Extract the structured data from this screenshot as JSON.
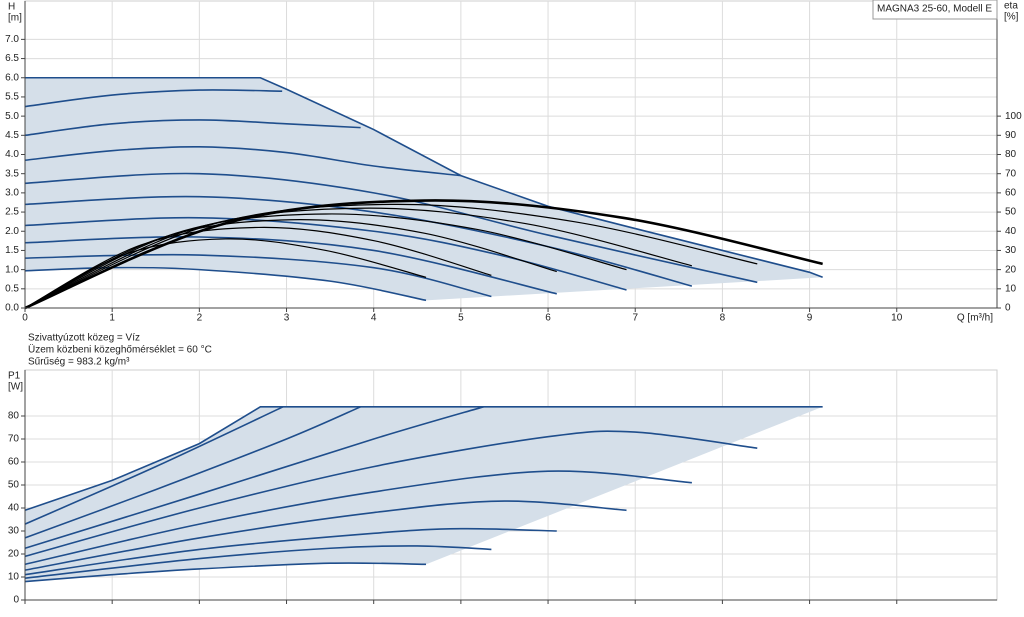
{
  "chart_data": [
    {
      "type": "line",
      "y_label": "H",
      "y_unit": "[m]",
      "y2_label": "eta",
      "y2_unit": "[%]",
      "x_label": "Q [m³/h]",
      "legend_box": "MAGNA3 25-60, Modell E",
      "notes": [
        "Szivattyúzott közeg = Víz",
        "Üzem közbeni közeghőmérséklet = 60 °C",
        "Sűrűség = 983.2 kg/m³"
      ],
      "xlim": [
        0,
        11.15
      ],
      "xticks": [
        0,
        1,
        2,
        3,
        4,
        5,
        6,
        7,
        8,
        9,
        10
      ],
      "show_xtick_labels": true,
      "ylim": [
        0,
        8
      ],
      "yticks": [
        {
          "value": 0,
          "label": "0.0"
        },
        0.5,
        {
          "value": 1,
          "label": "1.0"
        },
        1.5,
        {
          "value": 2,
          "label": "2.0"
        },
        2.5,
        {
          "value": 3,
          "label": "3.0"
        },
        3.5,
        {
          "value": 4,
          "label": "4.0"
        },
        4.5,
        {
          "value": 5,
          "label": "5.0"
        },
        5.5,
        {
          "value": 6,
          "label": "6.0"
        },
        6.5,
        {
          "value": 7,
          "label": "7.0"
        }
      ],
      "y2lim": [
        0,
        160
      ],
      "y2ticks": [
        0,
        10,
        20,
        30,
        40,
        50,
        60,
        70,
        80,
        90,
        100
      ],
      "grid": true,
      "area_color": "#d5dfe9",
      "series": [
        {
          "color": "#1f4e8c",
          "interpolation": "linear",
          "boundary": "max",
          "x": [
            0,
            2.7,
            3,
            4,
            5,
            6,
            7,
            8,
            9,
            9.15
          ],
          "values": [
            6,
            6,
            5.7,
            4.65,
            3.45,
            2.65,
            2.07,
            1.5,
            0.93,
            0.8
          ]
        },
        {
          "color": "#1f4e8c",
          "x": [
            0,
            1,
            2,
            2.95
          ],
          "values": [
            5.25,
            5.55,
            5.68,
            5.65
          ]
        },
        {
          "color": "#1f4e8c",
          "x": [
            0,
            1,
            2,
            3,
            3.85
          ],
          "values": [
            4.5,
            4.8,
            4.9,
            4.8,
            4.7
          ]
        },
        {
          "color": "#1f4e8c",
          "x": [
            0,
            1,
            2,
            3,
            4,
            5
          ],
          "values": [
            3.85,
            4.1,
            4.2,
            4.05,
            3.7,
            3.45
          ]
        },
        {
          "color": "#1f4e8c",
          "x": [
            0,
            2,
            4,
            6,
            8.4
          ],
          "values": [
            3.25,
            3.5,
            3.0,
            1.9,
            0.67
          ]
        },
        {
          "color": "#1f4e8c",
          "x": [
            0,
            2,
            4,
            6,
            7.65
          ],
          "values": [
            2.7,
            2.9,
            2.5,
            1.6,
            0.57
          ]
        },
        {
          "color": "#1f4e8c",
          "x": [
            0,
            2,
            4,
            5.5,
            6.9
          ],
          "values": [
            2.15,
            2.35,
            2.0,
            1.35,
            0.47
          ]
        },
        {
          "color": "#1f4e8c",
          "x": [
            0,
            2,
            4,
            6.1
          ],
          "values": [
            1.7,
            1.85,
            1.5,
            0.37
          ]
        },
        {
          "color": "#1f4e8c",
          "x": [
            0,
            2,
            4,
            5.35
          ],
          "values": [
            1.3,
            1.38,
            1.05,
            0.3
          ]
        },
        {
          "color": "#1f4e8c",
          "boundary": "min",
          "x": [
            0,
            1,
            2,
            3.5,
            4.6
          ],
          "values": [
            0.97,
            1.05,
            1.0,
            0.7,
            0.2
          ]
        },
        {
          "color": "#000000",
          "axis": "y2",
          "x": [
            0,
            1.15,
            2.3,
            3.45,
            4.6
          ],
          "values": [
            0,
            28,
            36,
            30,
            16
          ]
        },
        {
          "color": "#000000",
          "axis": "y2",
          "x": [
            0,
            1.34,
            2.68,
            4.01,
            5.35
          ],
          "values": [
            0,
            33,
            42,
            35,
            17
          ]
        },
        {
          "color": "#000000",
          "axis": "y2",
          "x": [
            0,
            1.53,
            3.05,
            4.58,
            6.1
          ],
          "values": [
            0,
            36,
            46,
            39,
            19
          ]
        },
        {
          "color": "#000000",
          "axis": "y2",
          "x": [
            0,
            1.73,
            3.45,
            5.18,
            6.9
          ],
          "values": [
            0,
            39,
            49,
            41,
            20
          ]
        },
        {
          "color": "#000000",
          "axis": "y2",
          "x": [
            0,
            1.91,
            3.83,
            5.74,
            7.65
          ],
          "values": [
            0,
            41,
            52,
            44,
            22
          ]
        },
        {
          "color": "#000000",
          "axis": "y2",
          "x": [
            0,
            2.1,
            4.2,
            6.3,
            8.4
          ],
          "values": [
            0,
            43,
            54,
            45,
            23
          ]
        },
        {
          "color": "#000000",
          "axis": "y2",
          "emphasis": true,
          "x": [
            0,
            2.29,
            4.58,
            6.86,
            9.15
          ],
          "values": [
            0,
            44,
            56,
            47,
            23
          ]
        }
      ]
    },
    {
      "type": "line",
      "y_label": "P1",
      "y_unit": "[W]",
      "xlim": [
        0,
        11.15
      ],
      "xticks": [
        0,
        1,
        2,
        3,
        4,
        5,
        6,
        7,
        8,
        9,
        10
      ],
      "show_xtick_labels": false,
      "ylim": [
        0,
        100
      ],
      "yticks": [
        0,
        10,
        20,
        30,
        40,
        50,
        60,
        70,
        80
      ],
      "grid": true,
      "area_color": "#d5dfe9",
      "series": [
        {
          "color": "#1f4e8c",
          "interpolation": "linear",
          "boundary": "max",
          "x": [
            0,
            1,
            2,
            2.7,
            9.15
          ],
          "values": [
            39,
            52,
            68,
            84,
            84
          ]
        },
        {
          "color": "#1f4e8c",
          "x": [
            0,
            1.5,
            2.96
          ],
          "values": [
            33,
            58,
            84
          ]
        },
        {
          "color": "#1f4e8c",
          "x": [
            0,
            1.5,
            3,
            3.85
          ],
          "values": [
            27,
            48,
            70,
            84
          ]
        },
        {
          "color": "#1f4e8c",
          "x": [
            0,
            2,
            4,
            5.26
          ],
          "values": [
            22.5,
            46,
            70,
            84
          ]
        },
        {
          "color": "#1f4e8c",
          "x": [
            0,
            2,
            4,
            6,
            7,
            8.4
          ],
          "values": [
            19,
            40,
            58,
            71,
            73,
            66
          ]
        },
        {
          "color": "#1f4e8c",
          "x": [
            0,
            2,
            4,
            6,
            7.65
          ],
          "values": [
            15.5,
            33,
            47,
            56,
            51
          ]
        },
        {
          "color": "#1f4e8c",
          "x": [
            0,
            2,
            4,
            5.5,
            6.9
          ],
          "values": [
            13,
            27,
            38,
            43,
            39
          ]
        },
        {
          "color": "#1f4e8c",
          "x": [
            0,
            2,
            4,
            5,
            6.1
          ],
          "values": [
            11,
            22,
            29,
            31,
            30
          ]
        },
        {
          "color": "#1f4e8c",
          "x": [
            0,
            2,
            3.5,
            4.5,
            5.35
          ],
          "values": [
            9.5,
            18,
            22.5,
            23.5,
            22
          ]
        },
        {
          "color": "#1f4e8c",
          "boundary": "min",
          "x": [
            0,
            1,
            2,
            3.5,
            4.6
          ],
          "values": [
            8,
            11,
            13.5,
            16,
            15.5
          ]
        }
      ]
    }
  ]
}
